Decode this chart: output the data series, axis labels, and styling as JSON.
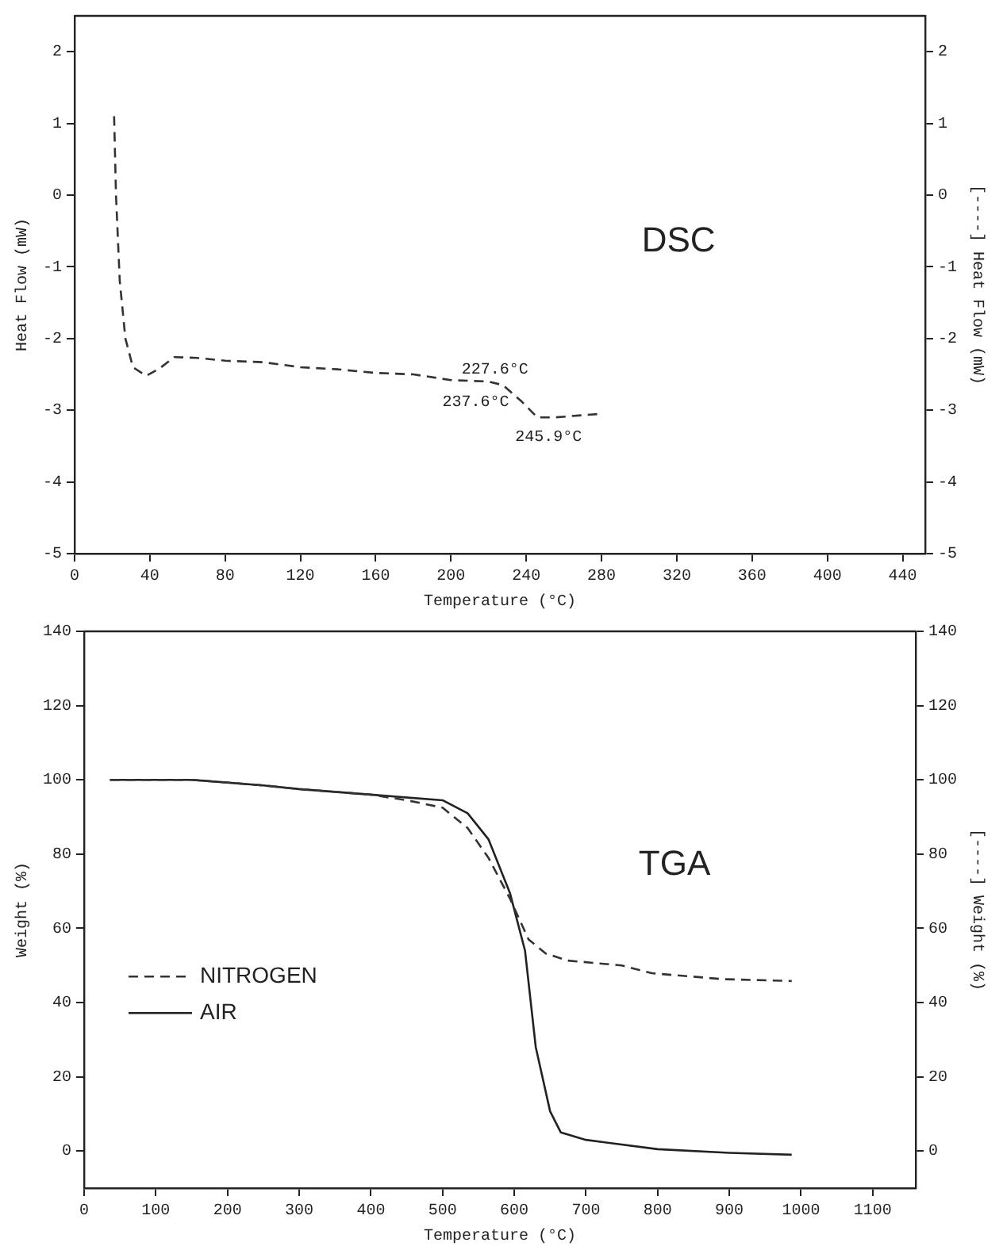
{
  "chart_data": [
    {
      "type": "line",
      "xlabel": "Temperature (°C)",
      "ylabel": "Heat Flow (mW)",
      "y2label": "[----] Heat Flow (mW)",
      "annotations": [
        "DSC",
        {
          "text": "227.6°C",
          "x": 227.6,
          "y": -2.65
        },
        {
          "text": "237.6°C",
          "x": 237.6,
          "y": -2.88
        },
        {
          "text": "245.9°C",
          "x": 245.9,
          "y": -3.1
        }
      ],
      "xlim": [
        0,
        452
      ],
      "xticks": [
        0,
        40,
        80,
        120,
        160,
        200,
        240,
        280,
        320,
        360,
        400,
        440
      ],
      "ylim": [
        -5,
        2.5
      ],
      "yticks": [
        -5,
        -4,
        -3,
        -2,
        -1,
        0,
        1,
        2
      ],
      "y2lim": [
        -5,
        2.5
      ],
      "y2ticks": [
        -5,
        -4,
        -3,
        -2,
        -1,
        0,
        1,
        2
      ],
      "grid": false,
      "legend": false,
      "marker": "none",
      "series": [
        {
          "color": "#333333",
          "line_style": "dashed",
          "x": [
            21,
            22,
            24,
            27,
            31,
            38,
            45,
            53,
            65,
            80,
            100,
            120,
            140,
            160,
            180,
            200,
            220,
            227.6,
            237.6,
            245.9,
            255,
            270,
            280
          ],
          "values": [
            1.1,
            0,
            -1.2,
            -2.0,
            -2.4,
            -2.52,
            -2.42,
            -2.26,
            -2.27,
            -2.31,
            -2.33,
            -2.4,
            -2.43,
            -2.48,
            -2.5,
            -2.58,
            -2.6,
            -2.65,
            -2.88,
            -3.1,
            -3.1,
            -3.07,
            -3.05
          ]
        }
      ]
    },
    {
      "type": "line",
      "xlabel": "Temperature (°C)",
      "ylabel": "Weight (%)",
      "y2label": "[----] Weight (%)",
      "annotations": [
        "TGA"
      ],
      "xlim": [
        0,
        1160
      ],
      "xticks": [
        0,
        100,
        200,
        300,
        400,
        500,
        600,
        700,
        800,
        900,
        1000,
        1100
      ],
      "ylim": [
        -10,
        140
      ],
      "yticks": [
        0,
        20,
        40,
        60,
        80,
        100,
        120,
        140
      ],
      "y2lim": [
        -10,
        140
      ],
      "y2ticks": [
        0,
        20,
        40,
        60,
        80,
        100,
        120,
        140
      ],
      "grid": false,
      "legend": "left",
      "marker": "none",
      "series": [
        {
          "name": "NITROGEN",
          "color": "#333333",
          "line_style": "dashed",
          "x": [
            36,
            150,
            250,
            300,
            400,
            450,
            500,
            535,
            564,
            594,
            620,
            644,
            675,
            750,
            792,
            891,
            987
          ],
          "values": [
            100,
            100,
            98.5,
            97.5,
            96,
            94.5,
            92.5,
            87,
            79,
            68,
            57,
            53.2,
            51.3,
            50,
            47.9,
            46.3,
            45.8
          ]
        },
        {
          "name": "AIR",
          "color": "#222222",
          "line_style": "solid",
          "x": [
            36,
            150,
            250,
            300,
            400,
            500,
            535,
            564,
            594,
            615,
            630,
            650,
            665,
            700,
            800,
            900,
            987
          ],
          "values": [
            100,
            100,
            98.5,
            97.5,
            96,
            94.5,
            91,
            84,
            69.5,
            54,
            28,
            10.7,
            5,
            3,
            0.5,
            -0.5,
            -1
          ]
        }
      ]
    }
  ]
}
